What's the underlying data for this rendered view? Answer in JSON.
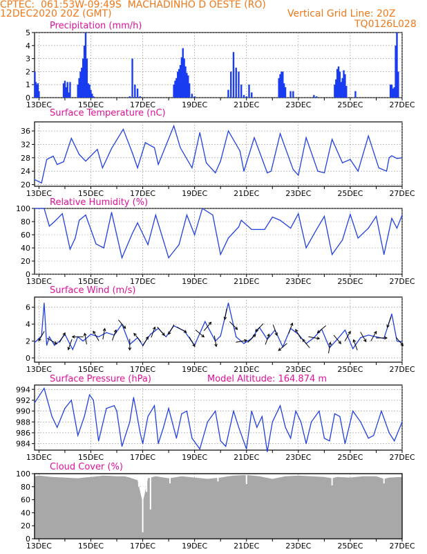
{
  "header": {
    "line1_left": "CPTEC:  061:53W-09:49S  MACHADINHO D OESTE (RO)",
    "line2_left": "12DEC2020 20Z (GMT)",
    "line2_right": "Vertical Grid Line: 20Z",
    "line3_right": "TQ0126L028"
  },
  "colors": {
    "header": "#f07818",
    "panel_title": "#e0109a",
    "series_line": "#1f3fe0",
    "precip_bar": "#1a3cf0",
    "cloud_fill": "#a8a8a8",
    "arrow": "#000000",
    "grid": "#999999"
  },
  "x_axis": {
    "tick_labels": [
      "13DEC",
      "15DEC",
      "17DEC",
      "19DEC",
      "21DEC",
      "23DEC",
      "25DEC",
      "27DEC"
    ]
  },
  "chart_data": [
    {
      "id": "precip",
      "type": "bar",
      "title": "Precipitation (mm/h)",
      "ylim": [
        0,
        5
      ],
      "yticks": [
        0,
        1,
        2,
        3,
        4,
        5
      ],
      "grid": "dashed",
      "x_start": 12.83,
      "x_end": 27.0,
      "x": [
        12.84,
        12.88,
        12.92,
        12.96,
        13.0,
        13.95,
        14.0,
        14.05,
        14.1,
        14.15,
        14.2,
        14.5,
        14.55,
        14.6,
        14.65,
        14.7,
        14.75,
        14.8,
        14.85,
        14.9,
        14.95,
        15.0,
        15.05,
        15.1,
        16.5,
        16.6,
        16.7,
        16.8,
        16.9,
        18.2,
        18.25,
        18.3,
        18.35,
        18.4,
        18.45,
        18.5,
        18.55,
        18.6,
        18.65,
        18.7,
        18.75,
        18.8,
        18.9,
        19.0,
        20.3,
        20.4,
        20.5,
        20.6,
        20.7,
        20.8,
        20.9,
        21.0,
        21.1,
        21.2,
        22.25,
        22.3,
        22.35,
        22.4,
        22.45,
        22.5,
        22.7,
        22.8,
        23.6,
        23.7,
        24.4,
        24.45,
        24.5,
        24.55,
        24.6,
        24.65,
        24.7,
        24.75,
        24.8,
        24.85,
        25.2,
        26.55,
        26.6,
        26.65,
        26.7,
        26.75,
        26.8,
        26.85
      ],
      "values": [
        2.0,
        1.2,
        1.0,
        1.1,
        0.5,
        1.1,
        1.3,
        0.8,
        1.2,
        0.4,
        1.2,
        1.0,
        1.5,
        2.0,
        2.3,
        3.0,
        4.0,
        5.0,
        3.0,
        1.1,
        1.0,
        0.6,
        0.3,
        0.1,
        0.1,
        3.0,
        1.0,
        0.7,
        0.1,
        1.0,
        1.3,
        1.5,
        2.0,
        2.2,
        2.5,
        3.1,
        3.8,
        3.0,
        2.4,
        1.9,
        1.7,
        1.1,
        0.3,
        0.1,
        0.6,
        2.0,
        3.5,
        2.3,
        2.0,
        1.0,
        0.2,
        0.1,
        1.0,
        0.4,
        1.5,
        1.8,
        2.0,
        2.0,
        1.1,
        0.8,
        0.5,
        0.5,
        0.2,
        0.1,
        1.0,
        1.4,
        2.2,
        2.4,
        2.0,
        1.2,
        1.5,
        2.1,
        1.8,
        0.9,
        0.5,
        1.0,
        1.0,
        0.7,
        0.8,
        4.0,
        5.0,
        2.0
      ]
    },
    {
      "id": "temp",
      "type": "line",
      "title": "Surface Temperature (nC)",
      "ylim": [
        19.5,
        38.7
      ],
      "yticks": [
        20,
        24,
        28,
        32,
        36
      ],
      "grid": "dashed",
      "x": [
        12.83,
        13.1,
        13.3,
        13.55,
        13.7,
        13.95,
        14.25,
        14.55,
        14.8,
        15.25,
        15.45,
        15.8,
        16.25,
        16.6,
        16.8,
        17.1,
        17.45,
        17.6,
        18.2,
        18.45,
        18.9,
        19.2,
        19.45,
        19.8,
        20.0,
        20.3,
        20.75,
        20.9,
        21.3,
        21.8,
        21.95,
        22.3,
        22.8,
        23.0,
        23.3,
        23.75,
        24.0,
        24.3,
        24.7,
        25.0,
        25.3,
        25.7,
        26.1,
        26.4,
        26.5,
        26.6,
        26.8,
        27.0
      ],
      "values": [
        21.5,
        20.5,
        27.5,
        28.5,
        26.0,
        26.8,
        33.8,
        29.0,
        27.0,
        30.5,
        25.0,
        30.8,
        36.5,
        29.5,
        25.0,
        32.5,
        31.0,
        26.0,
        37.5,
        31.0,
        25.0,
        35.5,
        26.5,
        23.5,
        27.0,
        36.0,
        30.0,
        24.0,
        34.0,
        23.5,
        24.0,
        35.2,
        24.5,
        22.8,
        34.0,
        24.0,
        23.5,
        33.5,
        26.5,
        27.5,
        24.0,
        34.5,
        25.0,
        24.0,
        28.0,
        28.6,
        27.8,
        28.0
      ]
    },
    {
      "id": "rh",
      "type": "line",
      "title": "Relative Humidity (%)",
      "ylim": [
        0,
        100
      ],
      "yticks": [
        0,
        20,
        40,
        60,
        80,
        100
      ],
      "grid": "dashed",
      "x": [
        12.83,
        13.2,
        13.4,
        13.6,
        13.9,
        14.2,
        14.4,
        14.55,
        14.8,
        15.2,
        15.5,
        15.8,
        16.2,
        16.6,
        16.8,
        17.2,
        17.5,
        18.0,
        18.4,
        18.7,
        19.0,
        19.3,
        19.7,
        20.0,
        20.3,
        20.7,
        20.8,
        21.2,
        21.7,
        22.0,
        22.3,
        22.7,
        23.0,
        23.3,
        23.7,
        24.0,
        24.3,
        24.7,
        25.0,
        25.3,
        25.7,
        26.0,
        26.3,
        26.6,
        26.8,
        27.0
      ],
      "values": [
        100,
        100,
        73,
        80,
        92,
        38,
        55,
        82,
        90,
        46,
        40,
        94,
        25,
        62,
        78,
        45,
        90,
        25,
        45,
        90,
        60,
        100,
        90,
        30,
        55,
        72,
        82,
        68,
        68,
        87,
        82,
        70,
        92,
        40,
        68,
        88,
        30,
        52,
        91,
        55,
        70,
        88,
        30,
        85,
        70,
        90
      ]
    },
    {
      "id": "wind",
      "type": "line",
      "title": "Surface Wind (m/s)",
      "ylim": [
        -0.5,
        7.2
      ],
      "yticks": [
        0,
        2,
        4,
        6
      ],
      "grid": "dashed",
      "x": [
        12.83,
        13.1,
        13.2,
        13.3,
        13.4,
        13.6,
        13.8,
        14.0,
        14.3,
        14.5,
        14.7,
        15.0,
        15.3,
        15.6,
        15.9,
        16.2,
        16.5,
        16.8,
        17.0,
        17.3,
        17.6,
        17.9,
        18.2,
        18.6,
        19.0,
        19.4,
        19.8,
        20.0,
        20.3,
        20.6,
        20.9,
        21.2,
        21.5,
        21.8,
        22.1,
        22.4,
        22.7,
        23.0,
        23.3,
        23.6,
        23.9,
        24.2,
        24.5,
        24.8,
        25.1,
        25.4,
        25.7,
        26.0,
        26.3,
        26.6,
        26.8,
        27.0
      ],
      "values": [
        1.8,
        2.6,
        6.5,
        1.5,
        2.5,
        1.5,
        2.0,
        2.8,
        1.0,
        2.5,
        2.0,
        2.8,
        2.5,
        3.0,
        2.7,
        4.0,
        1.6,
        2.4,
        1.5,
        2.8,
        3.5,
        2.5,
        3.8,
        3.2,
        1.5,
        4.3,
        2.0,
        2.6,
        6.5,
        2.5,
        1.7,
        2.3,
        3.6,
        2.2,
        3.3,
        1.3,
        3.5,
        2.8,
        1.7,
        2.4,
        3.4,
        1.2,
        2.2,
        3.3,
        1.1,
        2.4,
        2.7,
        2.5,
        2.3,
        5.2,
        2.0,
        1.9
      ],
      "arrows": [
        {
          "x": 13.1,
          "dir": 210
        },
        {
          "x": 13.5,
          "dir": 120
        },
        {
          "x": 13.9,
          "dir": 30
        },
        {
          "x": 14.2,
          "dir": 200
        },
        {
          "x": 14.5,
          "dir": 270
        },
        {
          "x": 14.8,
          "dir": 350
        },
        {
          "x": 15.2,
          "dir": 330
        },
        {
          "x": 15.5,
          "dir": 10
        },
        {
          "x": 15.9,
          "dir": 20
        },
        {
          "x": 16.2,
          "dir": 140
        },
        {
          "x": 16.5,
          "dir": 180
        },
        {
          "x": 16.8,
          "dir": 320
        },
        {
          "x": 17.1,
          "dir": 30
        },
        {
          "x": 17.4,
          "dir": 20
        },
        {
          "x": 17.7,
          "dir": 140
        },
        {
          "x": 18.1,
          "dir": 210
        },
        {
          "x": 18.5,
          "dir": 120
        },
        {
          "x": 18.9,
          "dir": 150
        },
        {
          "x": 19.2,
          "dir": 130
        },
        {
          "x": 19.5,
          "dir": 40
        },
        {
          "x": 19.8,
          "dir": 170
        },
        {
          "x": 20.2,
          "dir": 190
        },
        {
          "x": 20.5,
          "dir": 135
        },
        {
          "x": 20.8,
          "dir": 80
        },
        {
          "x": 21.2,
          "dir": 45
        },
        {
          "x": 21.5,
          "dir": 225
        },
        {
          "x": 21.8,
          "dir": 20
        },
        {
          "x": 22.1,
          "dir": 160
        },
        {
          "x": 22.4,
          "dir": 230
        },
        {
          "x": 22.7,
          "dir": 20
        },
        {
          "x": 23.0,
          "dir": 330
        },
        {
          "x": 23.3,
          "dir": 320
        },
        {
          "x": 23.6,
          "dir": 100
        },
        {
          "x": 23.9,
          "dir": 230
        },
        {
          "x": 24.2,
          "dir": 10
        },
        {
          "x": 24.5,
          "dir": 140
        },
        {
          "x": 24.9,
          "dir": 30
        },
        {
          "x": 25.2,
          "dir": 340
        },
        {
          "x": 25.5,
          "dir": 150
        },
        {
          "x": 25.9,
          "dir": 30
        },
        {
          "x": 26.2,
          "dir": 90
        },
        {
          "x": 26.5,
          "dir": 200
        },
        {
          "x": 26.9,
          "dir": 140
        }
      ]
    },
    {
      "id": "pressure",
      "type": "line",
      "title": "Surface Pressure (hPa)",
      "subtitle": "Model Altitude: 164.874 m",
      "ylim": [
        982.8,
        994.8
      ],
      "yticks": [
        984,
        986,
        988,
        990,
        992,
        994
      ],
      "grid": "dashed",
      "x": [
        12.83,
        13.2,
        13.5,
        13.7,
        14.0,
        14.25,
        14.5,
        14.75,
        14.95,
        15.1,
        15.3,
        15.6,
        15.9,
        16.0,
        16.2,
        16.5,
        16.65,
        16.75,
        16.9,
        17.0,
        17.2,
        17.45,
        17.6,
        17.8,
        18.0,
        18.3,
        18.5,
        18.7,
        18.9,
        19.2,
        19.5,
        19.8,
        20.0,
        20.2,
        20.5,
        20.7,
        21.0,
        21.2,
        21.4,
        21.6,
        21.8,
        22.0,
        22.3,
        22.5,
        22.7,
        22.9,
        23.1,
        23.3,
        23.5,
        23.8,
        24.0,
        24.2,
        24.4,
        24.6,
        24.8,
        25.1,
        25.4,
        25.7,
        25.9,
        26.2,
        26.5,
        26.7,
        27.0
      ],
      "values": [
        991.5,
        994.2,
        989.0,
        987.0,
        990.5,
        992.0,
        985.5,
        989.0,
        993.0,
        992.0,
        984.5,
        990.5,
        991.0,
        990.0,
        983.5,
        988.0,
        992.5,
        990.0,
        986.0,
        984.0,
        989.0,
        991.0,
        984.0,
        987.0,
        990.5,
        985.0,
        989.5,
        990.0,
        985.0,
        983.0,
        988.0,
        990.0,
        984.5,
        983.5,
        990.0,
        987.0,
        983.0,
        990.0,
        987.0,
        989.0,
        982.5,
        988.0,
        991.0,
        987.0,
        985.0,
        990.0,
        988.0,
        984.0,
        988.0,
        990.0,
        985.0,
        984.5,
        989.5,
        989.0,
        984.0,
        990.0,
        988.0,
        985.0,
        985.5,
        990.0,
        986.0,
        984.5,
        988.0
      ]
    },
    {
      "id": "cloud",
      "type": "area",
      "title": "Cloud Cover (%)",
      "ylim": [
        0,
        100
      ],
      "yticks": [
        0,
        20,
        40,
        60,
        80,
        100
      ],
      "grid": "dashed",
      "x": [
        12.83,
        13.0,
        13.5,
        14.0,
        14.5,
        15.0,
        15.5,
        16.0,
        16.3,
        16.5,
        16.8,
        17.0,
        17.2,
        17.5,
        18.0,
        18.2,
        18.5,
        19.0,
        19.5,
        20.0,
        20.3,
        20.5,
        21.0,
        21.5,
        22.0,
        22.5,
        23.0,
        23.5,
        24.0,
        24.3,
        24.5,
        25.0,
        25.5,
        26.0,
        26.3,
        26.5,
        27.0
      ],
      "values": [
        96,
        97,
        95,
        94,
        93,
        95,
        97,
        96,
        96,
        94,
        90,
        55,
        93,
        96,
        93,
        94,
        96,
        94,
        92,
        94,
        96,
        97,
        98,
        96,
        92,
        96,
        97,
        96,
        95,
        93,
        95,
        94,
        96,
        96,
        92,
        94,
        95
      ],
      "dips": [
        {
          "x": 16.85,
          "v": 80
        },
        {
          "x": 17.0,
          "v": 10
        },
        {
          "x": 17.15,
          "v": 72
        },
        {
          "x": 17.3,
          "v": 45
        },
        {
          "x": 18.05,
          "v": 85
        },
        {
          "x": 19.9,
          "v": 88
        },
        {
          "x": 21.0,
          "v": 84
        },
        {
          "x": 24.3,
          "v": 82
        },
        {
          "x": 26.3,
          "v": 85
        }
      ]
    }
  ]
}
